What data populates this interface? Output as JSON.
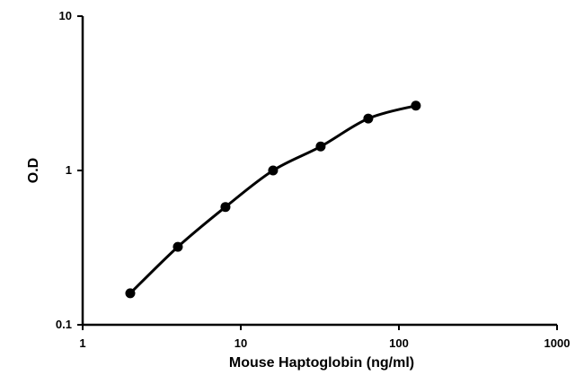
{
  "chart_data": {
    "type": "line",
    "x_scale": "log",
    "y_scale": "log",
    "xlabel": "Mouse Haptoglobin (ng/ml)",
    "ylabel": "O.D",
    "xlim": [
      1,
      1000
    ],
    "ylim": [
      0.1,
      10
    ],
    "x_ticks": [
      "1",
      "10",
      "100",
      "1000"
    ],
    "y_ticks": [
      "0.1",
      "1",
      "10"
    ],
    "grid": false,
    "legend": "none",
    "series": [
      {
        "x": [
          2,
          4,
          8,
          16,
          32,
          64,
          128
        ],
        "y": [
          0.16,
          0.32,
          0.58,
          1.0,
          1.43,
          2.17,
          2.63
        ],
        "marker": "circle",
        "color": "#000000"
      }
    ]
  }
}
